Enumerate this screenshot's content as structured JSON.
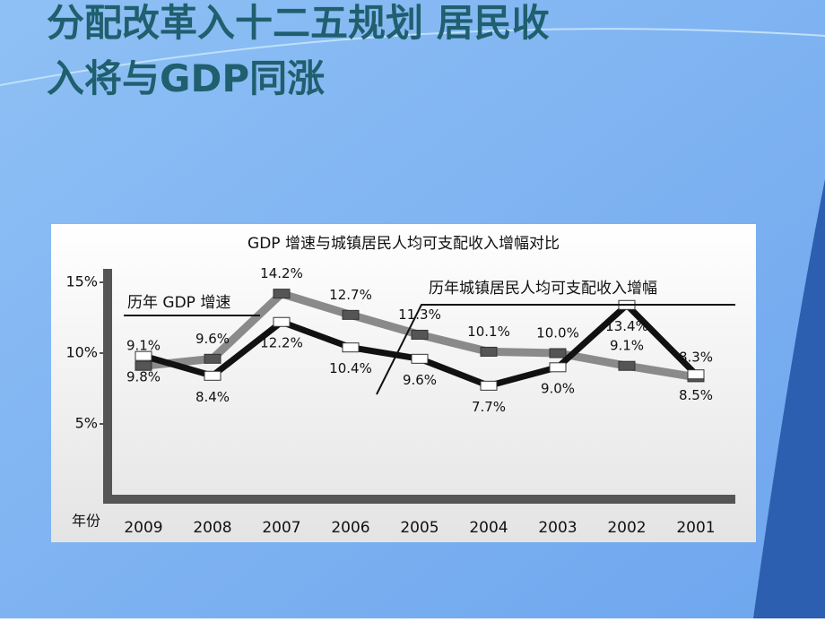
{
  "slide": {
    "title": "分配改革入十二五规划 居民收入将与GDP同涨"
  },
  "chart_data": {
    "type": "line",
    "title": "GDP 增速与城镇居民人均可支配收入增幅对比",
    "xlabel": "年份",
    "categories": [
      "2009",
      "2008",
      "2007",
      "2006",
      "2005",
      "2004",
      "2003",
      "2002",
      "2001"
    ],
    "series": [
      {
        "name": "历年 GDP 增速",
        "color": "#8a8a8a",
        "values": [
          9.1,
          9.6,
          14.2,
          12.7,
          11.3,
          10.1,
          10.0,
          9.1,
          8.3
        ],
        "value_labels": [
          "9.1%",
          "9.6%",
          "14.2%",
          "12.7%",
          "11.3%",
          "10.1%",
          "10.0%",
          "9.1%",
          "8.3%"
        ]
      },
      {
        "name": "历年城镇居民人均可支配收入增幅",
        "color": "#111111",
        "values": [
          9.8,
          8.4,
          12.2,
          10.4,
          9.6,
          7.7,
          9.0,
          13.4,
          8.5
        ],
        "value_labels": [
          "9.8%",
          "8.4%",
          "12.2%",
          "10.4%",
          "9.6%",
          "7.7%",
          "9.0%",
          "13.4%",
          "8.5%"
        ]
      }
    ],
    "ylim": [
      0,
      15
    ],
    "yticks": [
      {
        "value": 5,
        "label": "5%"
      },
      {
        "value": 10,
        "label": "10%"
      },
      {
        "value": 15,
        "label": "15%"
      }
    ]
  }
}
